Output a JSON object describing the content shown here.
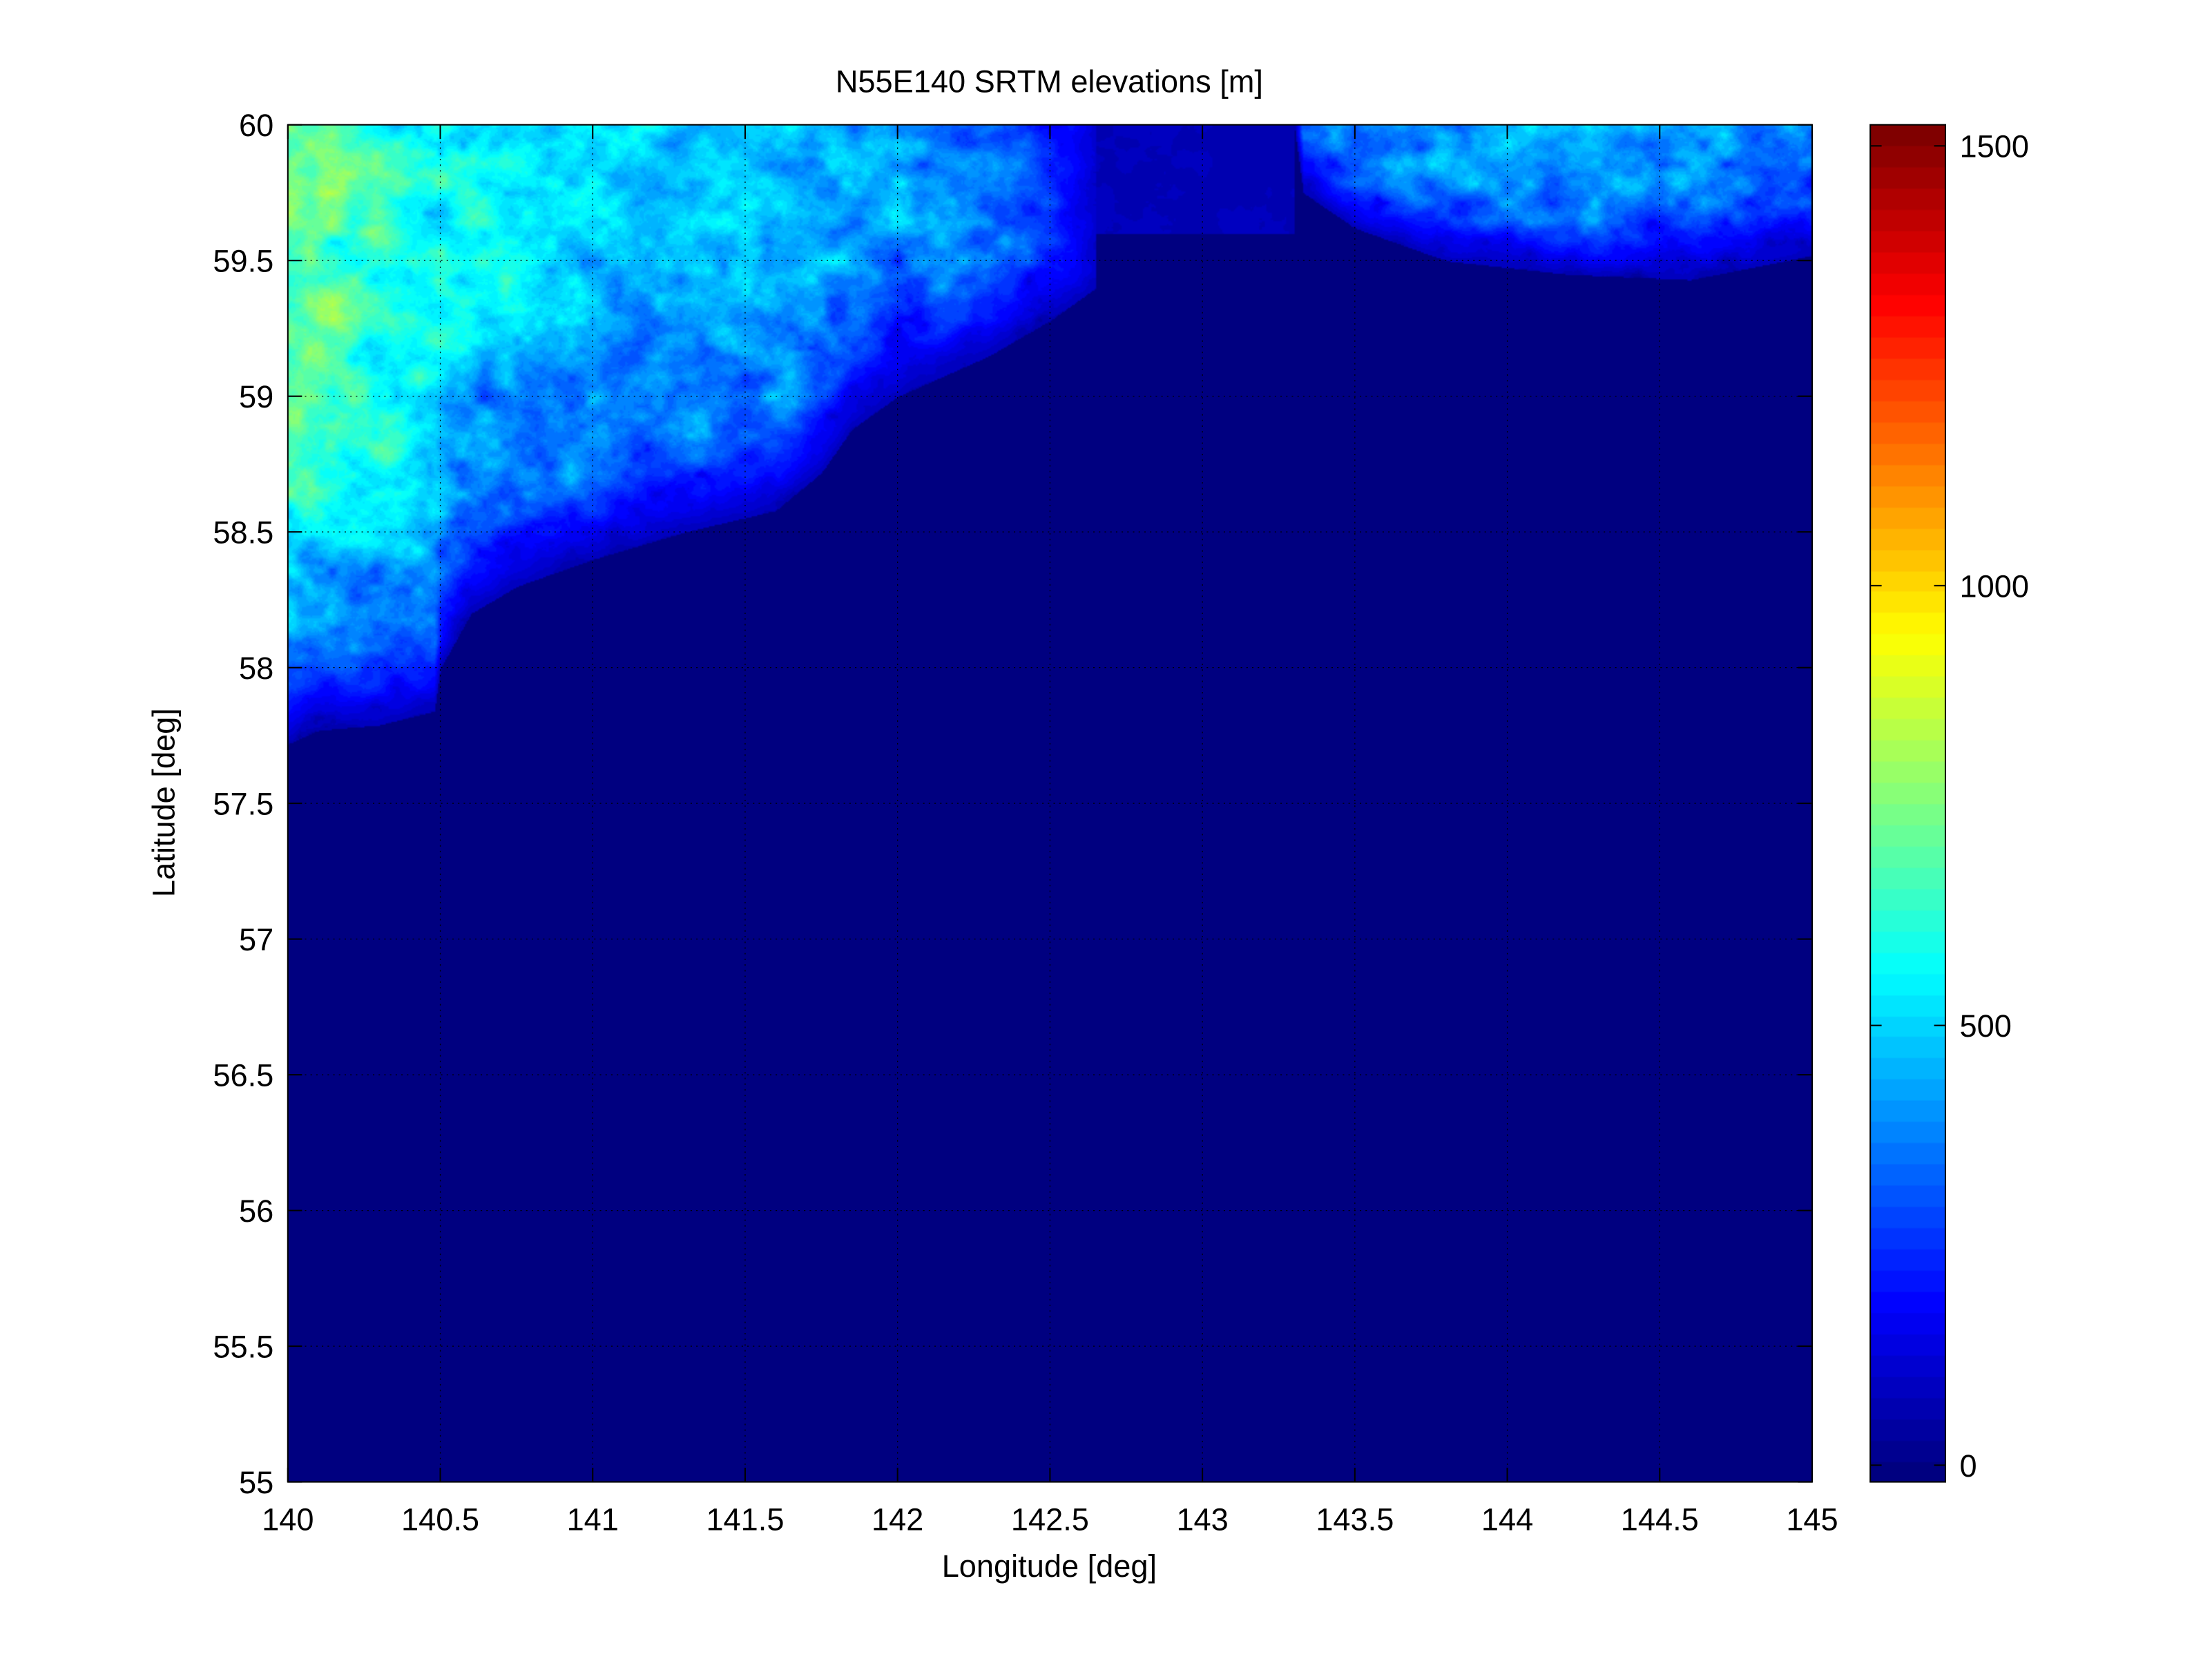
{
  "chart_data": {
    "type": "heatmap",
    "title": "N55E140 SRTM elevations [m]",
    "xlabel": "Longitude [deg]",
    "ylabel": "Latitude [deg]",
    "xlim": [
      140,
      145
    ],
    "ylim": [
      55,
      60
    ],
    "xticks": [
      "140",
      "140.5",
      "141",
      "141.5",
      "142",
      "142.5",
      "143",
      "143.5",
      "144",
      "144.5",
      "145"
    ],
    "yticks": [
      "55",
      "55.5",
      "56",
      "56.5",
      "57",
      "57.5",
      "58",
      "58.5",
      "59",
      "59.5",
      "60"
    ],
    "grid": true,
    "colormap": "jet",
    "clim": [
      -19,
      1524
    ],
    "colorbar": {
      "ticks": [
        "0",
        "500",
        "1000",
        "1500"
      ],
      "tick_values": [
        0,
        500,
        1000,
        1500
      ],
      "placement": "right"
    },
    "coastline": [
      [
        140,
        57.72
      ],
      [
        140.1,
        57.77
      ],
      [
        140.3,
        57.79
      ],
      [
        140.48,
        57.84
      ],
      [
        140.5,
        58.0
      ],
      [
        140.6,
        58.2
      ],
      [
        140.75,
        58.3
      ],
      [
        141.0,
        58.4
      ],
      [
        141.3,
        58.5
      ],
      [
        141.6,
        58.58
      ],
      [
        141.75,
        58.72
      ],
      [
        141.85,
        58.88
      ],
      [
        142.0,
        59.0
      ],
      [
        142.3,
        59.15
      ],
      [
        142.5,
        59.28
      ],
      [
        142.65,
        59.4
      ],
      [
        142.6,
        59.6
      ],
      [
        142.55,
        59.8
      ],
      [
        142.55,
        60.0
      ]
    ],
    "east_coastline": [
      [
        143.3,
        60.0
      ],
      [
        143.33,
        59.75
      ],
      [
        143.5,
        59.62
      ],
      [
        143.8,
        59.5
      ],
      [
        144.2,
        59.45
      ],
      [
        144.6,
        59.43
      ],
      [
        145.0,
        59.52
      ]
    ],
    "sea_value": -19,
    "max_elevation_shown": 1524
  }
}
